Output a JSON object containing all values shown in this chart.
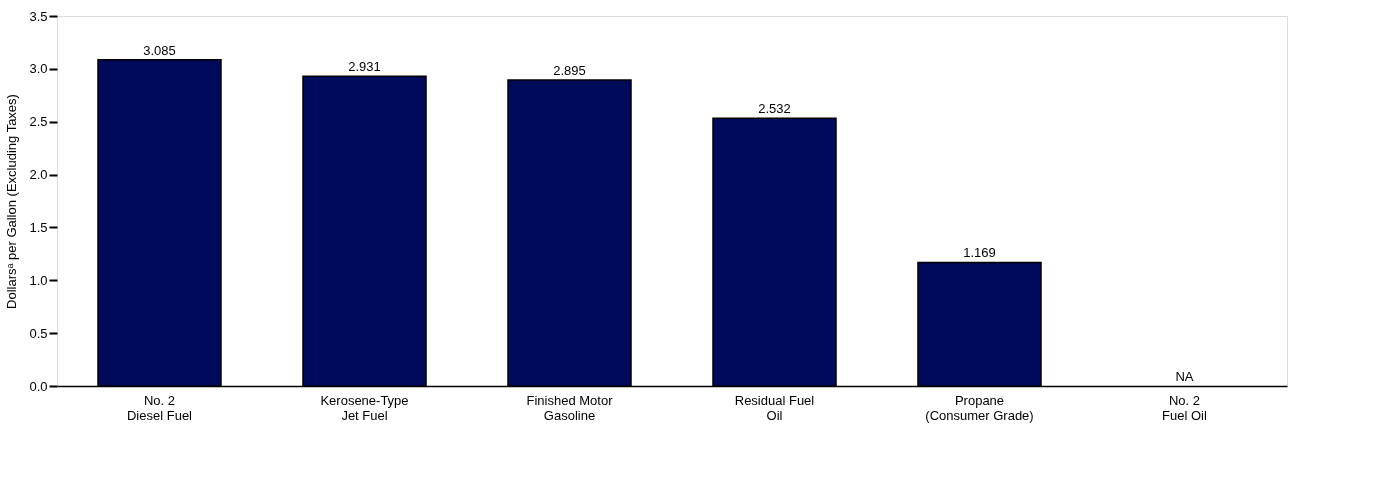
{
  "chart_data": {
    "type": "bar",
    "ylabel": "Dollarsᵃ per Gallon (Excluding Taxes)",
    "categories": [
      "No. 2\nDiesel Fuel",
      "Kerosene-Type\nJet Fuel",
      "Finished Motor\nGasoline",
      "Residual Fuel\nOil",
      "Propane\n(Consumer Grade)",
      "No. 2\nFuel Oil"
    ],
    "values": [
      3.085,
      2.931,
      2.895,
      2.532,
      1.169,
      null
    ],
    "value_labels": [
      "3.085",
      "2.931",
      "2.895",
      "2.532",
      "1.169",
      "NA"
    ],
    "color": "#000a5a",
    "ylim": [
      0,
      3.5
    ],
    "yticks": [
      {
        "value": 0,
        "label": "0.0"
      },
      {
        "value": 0.5,
        "label": "0.5"
      },
      {
        "value": 1,
        "label": "1.0"
      },
      {
        "value": 1.5,
        "label": "1.5"
      },
      {
        "value": 2,
        "label": "2.0"
      },
      {
        "value": 2.5,
        "label": "2.5"
      },
      {
        "value": 3,
        "label": "3.0"
      },
      {
        "value": 3.5,
        "label": "3.5"
      }
    ],
    "grid": false
  }
}
